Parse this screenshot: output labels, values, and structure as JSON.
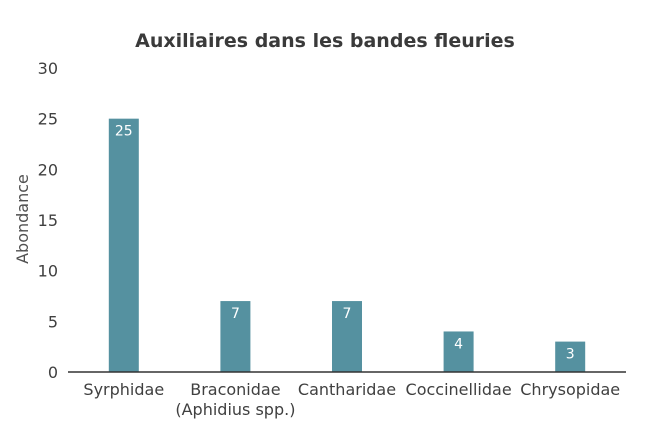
{
  "chart_data": {
    "type": "bar",
    "title": "Auxiliaires dans les bandes fleuries",
    "xlabel": "",
    "ylabel": "Abondance",
    "categories": [
      [
        "Syrphidae"
      ],
      [
        "Braconidae",
        "(Aphidius spp.)"
      ],
      [
        "Cantharidae"
      ],
      [
        "Coccinellidae"
      ],
      [
        "Chrysopidae"
      ]
    ],
    "values": [
      25,
      7,
      7,
      4,
      3
    ],
    "data_labels": [
      "25",
      "7",
      "7",
      "4",
      "3"
    ],
    "ylim": [
      0,
      30
    ],
    "yticks": [
      0,
      5,
      10,
      15,
      20,
      25,
      30
    ],
    "grid": false,
    "legend": "none",
    "bar_color": "#5591a0",
    "axis_color": "#333333"
  }
}
